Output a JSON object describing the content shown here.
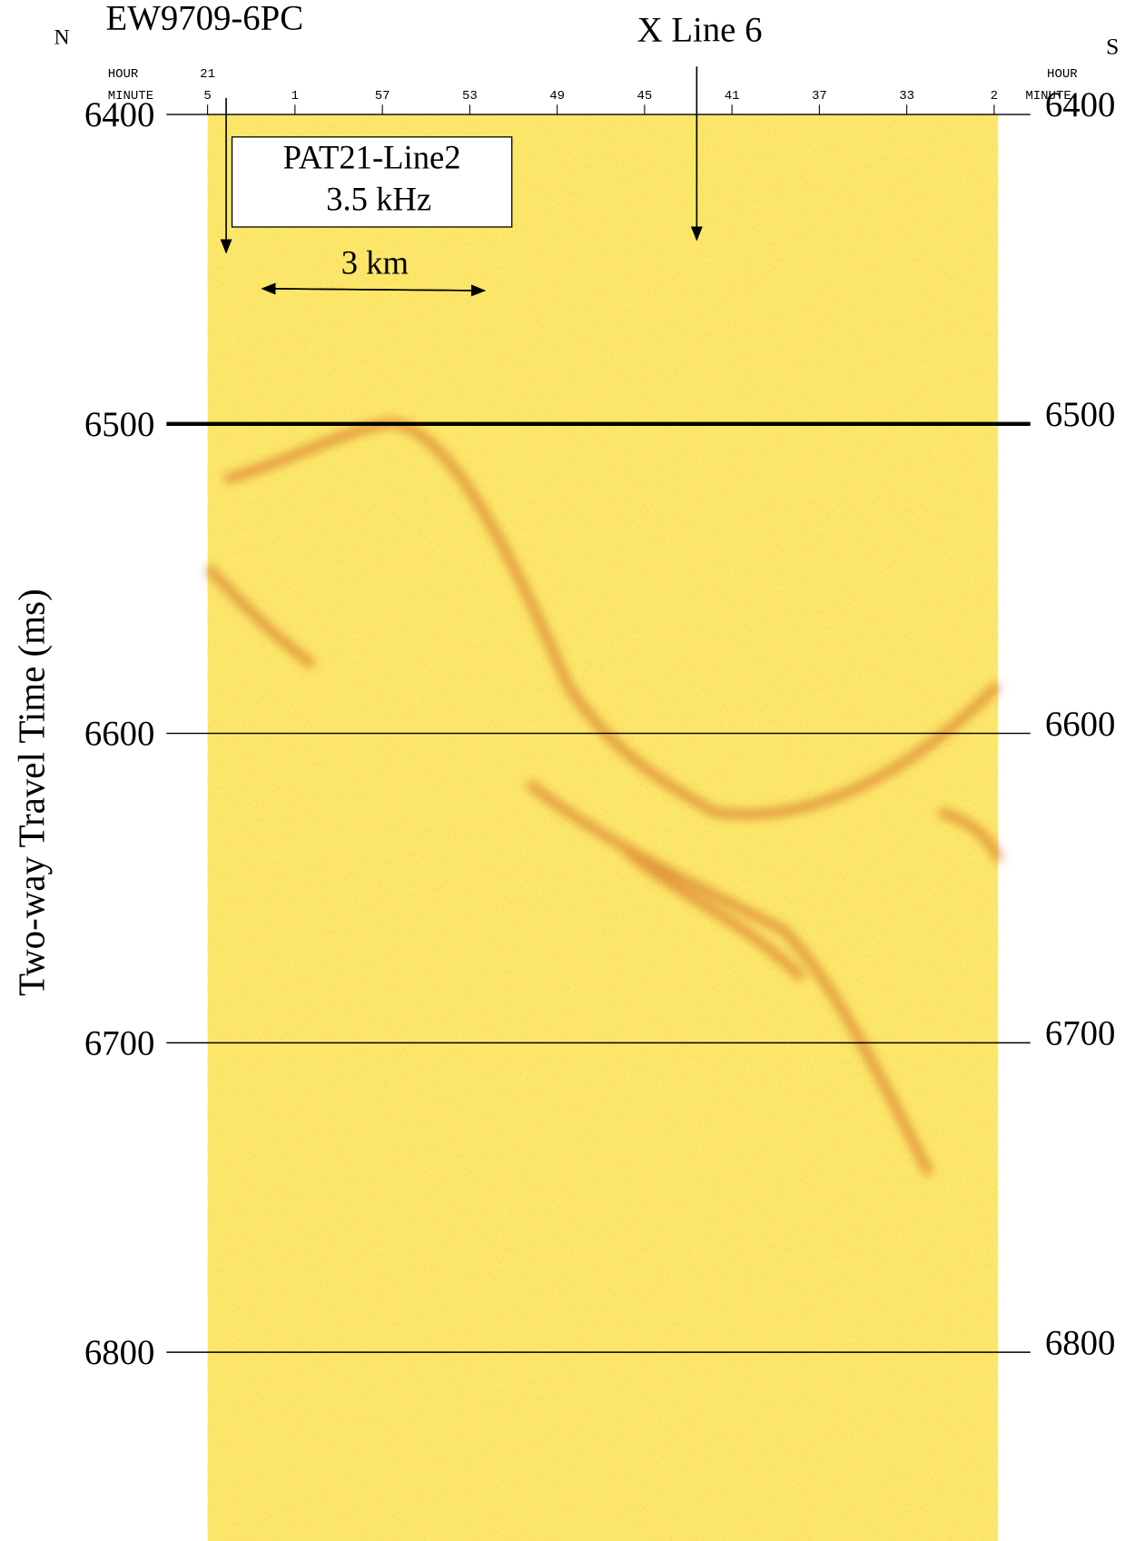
{
  "header": {
    "left_direction": "N",
    "right_direction": "S",
    "title": "EW9709-6PC",
    "crossing": "X Line 6"
  },
  "time_axis": {
    "hour_label": "HOUR",
    "minute_label": "MINUTE",
    "hour": "21",
    "minutes": [
      "5",
      "1",
      "57",
      "53",
      "49",
      "45",
      "41",
      "37",
      "33",
      "2"
    ]
  },
  "y_axis": {
    "label": "Two-way Travel Time (ms)",
    "ylim": [
      6400,
      6861
    ],
    "ticks": [
      6400,
      6500,
      6600,
      6700,
      6800
    ]
  },
  "annotation": {
    "box_line1": "PAT21-Line2",
    "box_line2": "3.5 kHz",
    "scale": "3 km"
  }
}
